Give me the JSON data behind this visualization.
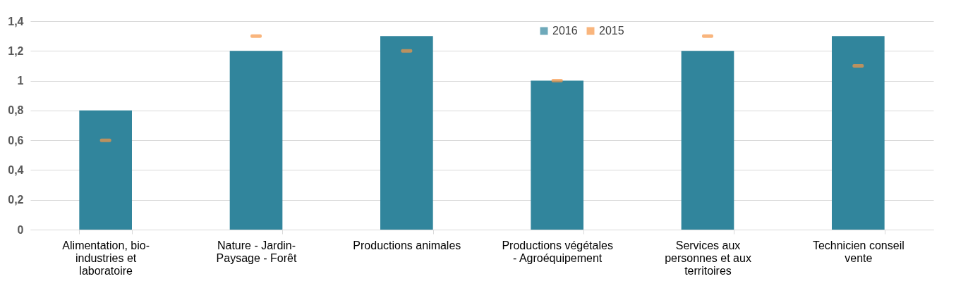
{
  "chart_data": {
    "type": "bar",
    "categories": [
      "Alimentation, bio-industries et laboratoire",
      "Nature - Jardin-Paysage - Forêt",
      "Productions animales",
      "Productions végétales - Agroéquipement",
      "Services aux personnes et aux territoires",
      "Technicien conseil vente"
    ],
    "series": [
      {
        "name": "2016",
        "color": "#31859c",
        "values": [
          0.8,
          1.2,
          1.3,
          1.0,
          1.2,
          1.3
        ]
      },
      {
        "name": "2015",
        "type": "scatter",
        "color": "#f79646",
        "values": [
          0.6,
          1.3,
          1.2,
          1.0,
          1.3,
          1.1
        ]
      }
    ],
    "ylim": [
      0,
      1.4
    ],
    "yticks": [
      0,
      {
        "value": 0.2,
        "label": "0,2"
      },
      {
        "value": 0.4,
        "label": "0,4"
      },
      {
        "value": 0.6,
        "label": "0,6"
      },
      {
        "value": 0.8,
        "label": "0,8"
      },
      1,
      {
        "value": 1.2,
        "label": "1,2"
      },
      {
        "value": 1.4,
        "label": "1,4"
      }
    ],
    "grid": "y",
    "legend": "top"
  }
}
